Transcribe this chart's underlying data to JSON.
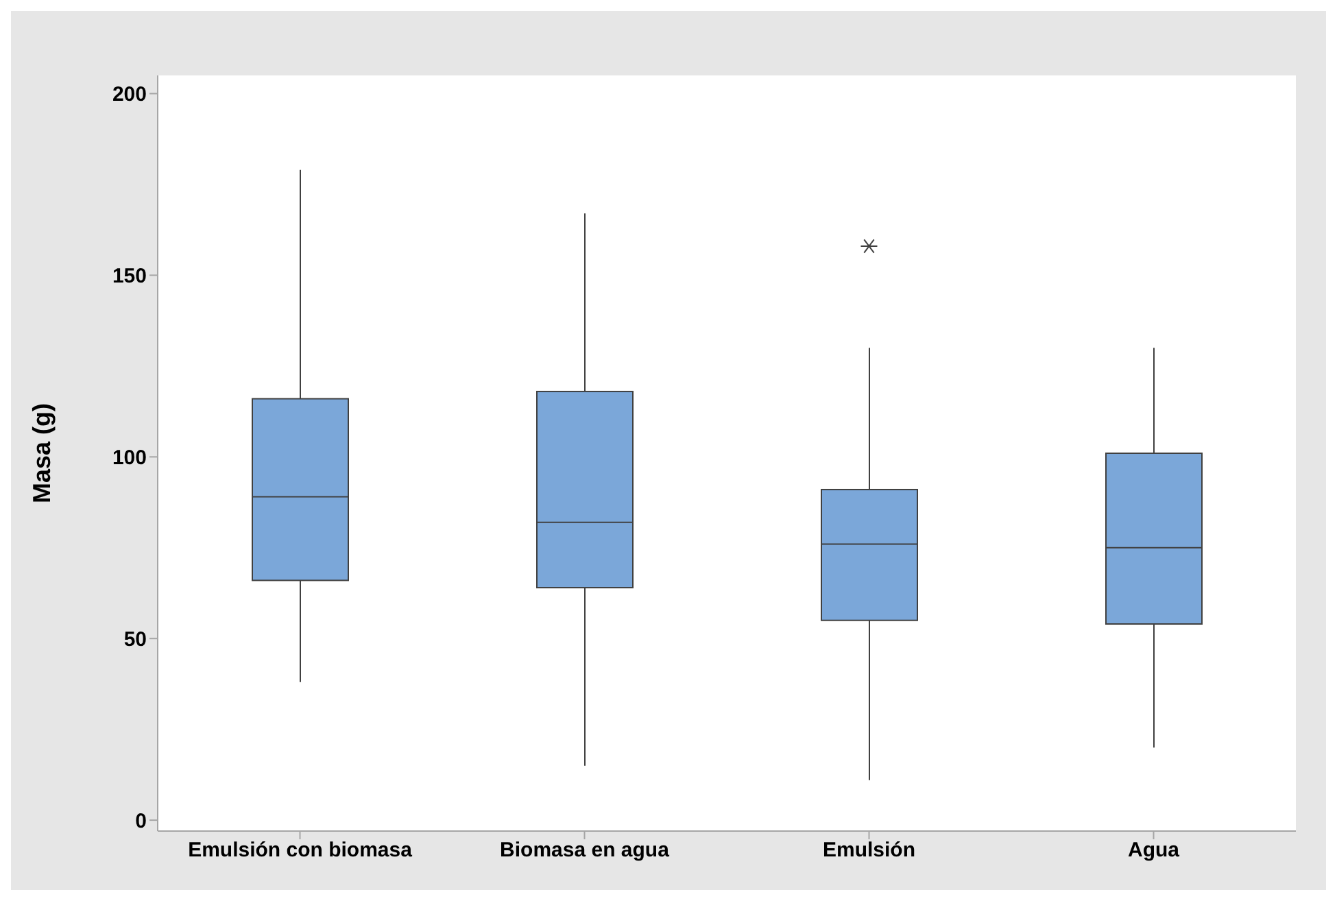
{
  "chart_data": {
    "type": "box",
    "ylabel": "Masa (g)",
    "categories": [
      "Emulsión con biomasa",
      "Biomasa en agua",
      "Emulsión",
      "Agua"
    ],
    "series": [
      {
        "color": "#7ba7d9",
        "boxes": [
          {
            "low": 38,
            "q1": 66,
            "median": 89,
            "q3": 116,
            "high": 179
          },
          {
            "low": 15,
            "q1": 64,
            "median": 82,
            "q3": 118,
            "high": 167
          },
          {
            "low": 11,
            "q1": 55,
            "median": 76,
            "q3": 91,
            "high": 130,
            "outliers": [
              158
            ]
          },
          {
            "low": 20,
            "q1": 54,
            "median": 75,
            "q3": 101,
            "high": 130
          }
        ]
      }
    ],
    "ylim": [
      -3,
      205
    ],
    "yticks": [
      0,
      50,
      100,
      150,
      200
    ],
    "grid": false,
    "legend": false
  }
}
